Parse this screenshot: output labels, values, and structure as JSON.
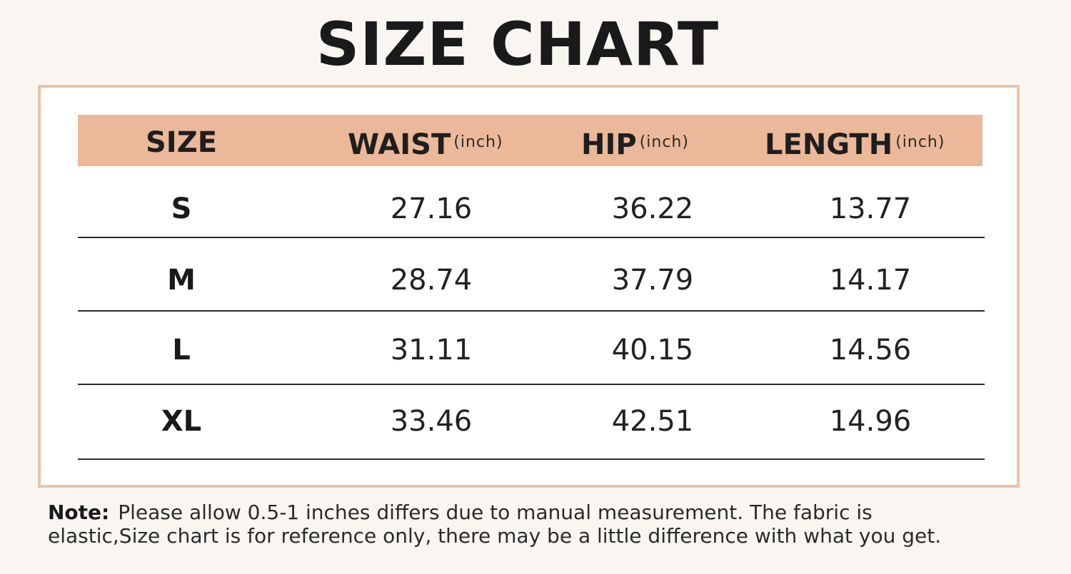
{
  "title": "SIZE CHART",
  "table": {
    "headers": [
      {
        "label": "SIZE",
        "unit": ""
      },
      {
        "label": "WAIST",
        "unit": "(inch)"
      },
      {
        "label": "HIP",
        "unit": "(inch)"
      },
      {
        "label": "LENGTH",
        "unit": "(inch)"
      }
    ],
    "rows": [
      {
        "size": "S",
        "waist": "27.16",
        "hip": "36.22",
        "length": "13.77"
      },
      {
        "size": "M",
        "waist": "28.74",
        "hip": "37.79",
        "length": "14.17"
      },
      {
        "size": "L",
        "waist": "31.11",
        "hip": "40.15",
        "length": "14.56"
      },
      {
        "size": "XL",
        "waist": "33.46",
        "hip": "42.51",
        "length": "14.96"
      }
    ]
  },
  "note": {
    "label": "Note:",
    "line1": "Please allow 0.5-1 inches differs due to manual measurement. The fabric is",
    "line2": "elastic,Size chart is for reference only, there may be a little difference with what you get."
  },
  "colors": {
    "header_band": "#ecb89a",
    "frame_border": "#ecc3a6",
    "background": "#f9f6f2"
  }
}
